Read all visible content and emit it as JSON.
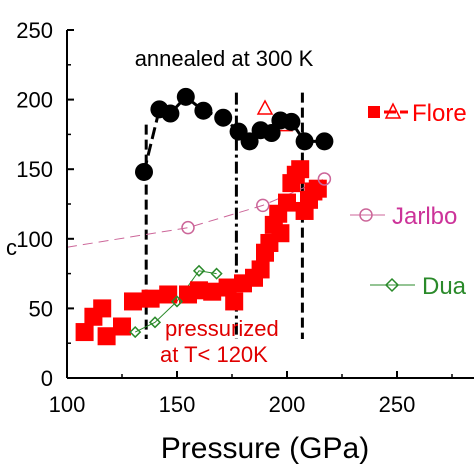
{
  "chart_data": {
    "type": "scatter",
    "xlabel": "Pressure (GPa)",
    "ylabel": "c",
    "xlim": [
      100,
      300
    ],
    "ylim": [
      0,
      250
    ],
    "x_ticks": [
      "100",
      "150",
      "200",
      "250"
    ],
    "y_ticks": [
      "0",
      "50",
      "100",
      "150",
      "200",
      "250"
    ],
    "grid": false,
    "legend_position": "right",
    "annotations": {
      "annealed": "annealed at 300 K",
      "pressurized_line1": "pressurized",
      "pressurized_line2": "at T< 120K"
    },
    "phase_boundaries_x": [
      136,
      177,
      207
    ],
    "series": [
      {
        "name": "Flore",
        "marker": "square",
        "color": "#ff0000",
        "points": [
          [
            108,
            33
          ],
          [
            112,
            44
          ],
          [
            116,
            50
          ],
          [
            118,
            30
          ],
          [
            125,
            37
          ],
          [
            130,
            55
          ],
          [
            138,
            57
          ],
          [
            146,
            60
          ],
          [
            155,
            60
          ],
          [
            160,
            63
          ],
          [
            166,
            62
          ],
          [
            173,
            65
          ],
          [
            176,
            55
          ],
          [
            180,
            68
          ],
          [
            185,
            72
          ],
          [
            188,
            78
          ],
          [
            190,
            90
          ],
          [
            192,
            97
          ],
          [
            194,
            110
          ],
          [
            196,
            118
          ],
          [
            197,
            104
          ],
          [
            200,
            126
          ],
          [
            202,
            140
          ],
          [
            204,
            146
          ],
          [
            206,
            150
          ],
          [
            208,
            120
          ],
          [
            210,
            128
          ],
          [
            212,
            134
          ],
          [
            214,
            136
          ]
        ]
      },
      {
        "name": "Flore",
        "marker": "triangle-open",
        "color": "#ff0000",
        "points": [
          [
            190,
            194
          ],
          [
            199,
            182
          ]
        ]
      },
      {
        "name": "",
        "marker": "circle",
        "color": "#000000",
        "points": [
          [
            135,
            148
          ],
          [
            142,
            193
          ],
          [
            147,
            190
          ],
          [
            154,
            202
          ],
          [
            162,
            192
          ],
          [
            171,
            187
          ],
          [
            178,
            177
          ],
          [
            183,
            170
          ],
          [
            188,
            178
          ],
          [
            193,
            176
          ],
          [
            197,
            185
          ],
          [
            202,
            184
          ],
          [
            208,
            170
          ],
          [
            217,
            170
          ]
        ]
      },
      {
        "name": "Jarlbo",
        "marker": "circle-open",
        "color": "#cc6699",
        "points": [
          [
            155,
            108
          ],
          [
            189,
            124
          ],
          [
            217,
            143
          ]
        ]
      },
      {
        "name": "Dua",
        "marker": "diamond-open",
        "color": "#2a8a2a",
        "points": [
          [
            131,
            33
          ],
          [
            140,
            40
          ],
          [
            150,
            55
          ],
          [
            160,
            77
          ],
          [
            168,
            75
          ]
        ]
      }
    ],
    "legend": [
      {
        "label": "Flore",
        "color": "#ff0000",
        "marker": "triangle-open"
      },
      {
        "label": "Jarlbo",
        "color": "#cc3399",
        "marker": "circle-open"
      },
      {
        "label": "Dua",
        "color": "#2a8a2a",
        "marker": "diamond-open"
      }
    ]
  }
}
